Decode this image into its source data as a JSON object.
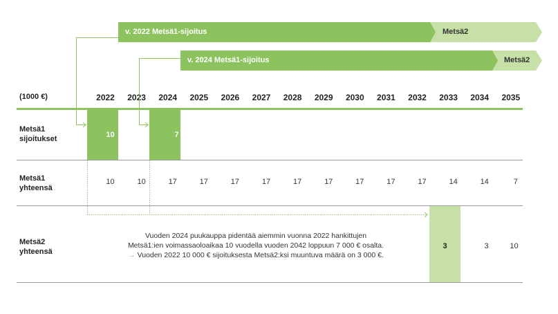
{
  "header": {
    "unit": "(1000 €)",
    "years": [
      "2022",
      "2023",
      "2024",
      "2025",
      "2026",
      "2027",
      "2028",
      "2029",
      "2030",
      "2031",
      "2032",
      "2033",
      "2034",
      "2035"
    ]
  },
  "bars": [
    {
      "label": "v. 2022 Metsä1-sijoitus",
      "ext": "Metsä2"
    },
    {
      "label": "v. 2024 Metsä1-sijoitus",
      "ext": "Metsä2"
    }
  ],
  "rows": {
    "investments": {
      "label1": "Metsä1",
      "label2": "sijoitukset",
      "values": [
        "10",
        "7"
      ]
    },
    "metsa1_total": {
      "label1": "Metsä1",
      "label2": "yhteensä",
      "values": [
        "10",
        "10",
        "17",
        "17",
        "17",
        "17",
        "17",
        "17",
        "17",
        "17",
        "17",
        "14",
        "14",
        "7"
      ]
    },
    "metsa2_total": {
      "label1": "Metsä2",
      "label2": "yhteensä",
      "values": [
        "3",
        "3",
        "10"
      ]
    }
  },
  "note": {
    "line1": "Vuoden 2024 puukauppa pidentää aiemmin vuonna 2022 hankittujen",
    "line2": "Metsä1:ien voimassaoloaikaa 10 vuodella vuoden 2042 loppuun 7 000 € osalta.",
    "arrow": "→",
    "line3": "Vuoden 2022 10 000 € sijoituksesta Metsä2:ksi muuntuva määrä on 3 000 €."
  },
  "colors": {
    "green": "#8cc35e",
    "light_green": "#c6e0a8"
  }
}
